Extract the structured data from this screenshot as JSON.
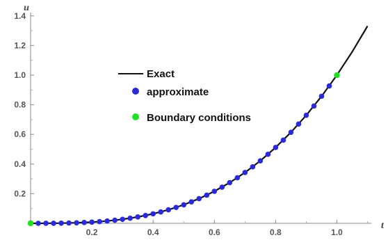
{
  "chart_data": {
    "type": "line",
    "title": "",
    "xlabel": "t",
    "ylabel": "u",
    "xlim": [
      0,
      1.1
    ],
    "ylim": [
      0,
      1.4
    ],
    "x_ticks": [
      "0.2",
      "0.4",
      "0.6",
      "0.8",
      "1.0"
    ],
    "y_ticks": [
      "0.2",
      "0.4",
      "0.6",
      "0.8",
      "1.0",
      "1.2",
      "1.4"
    ],
    "grid": false,
    "legend_position": "center-left",
    "legend": {
      "exact": "Exact",
      "approximate": "approximate",
      "boundary": "Boundary conditions"
    },
    "series": [
      {
        "name": "Exact",
        "style": "line",
        "color": "#111111",
        "x": [
          0,
          0.05,
          0.1,
          0.15,
          0.2,
          0.25,
          0.3,
          0.35,
          0.4,
          0.45,
          0.5,
          0.55,
          0.6,
          0.65,
          0.7,
          0.75,
          0.8,
          0.85,
          0.9,
          0.95,
          1.0,
          1.05,
          1.1
        ],
        "y": [
          0,
          0.0001,
          0.001,
          0.0034,
          0.008,
          0.0156,
          0.027,
          0.0429,
          0.064,
          0.0911,
          0.125,
          0.1664,
          0.216,
          0.2746,
          0.343,
          0.4219,
          0.512,
          0.6141,
          0.729,
          0.8574,
          1.0,
          1.1576,
          1.331
        ]
      },
      {
        "name": "approximate",
        "style": "points",
        "color": "#2a2adb",
        "x": [
          0,
          0.025,
          0.05,
          0.075,
          0.1,
          0.125,
          0.15,
          0.175,
          0.2,
          0.225,
          0.25,
          0.275,
          0.3,
          0.325,
          0.35,
          0.375,
          0.4,
          0.425,
          0.45,
          0.475,
          0.5,
          0.525,
          0.55,
          0.575,
          0.6,
          0.625,
          0.65,
          0.675,
          0.7,
          0.725,
          0.75,
          0.775,
          0.8,
          0.825,
          0.85,
          0.875,
          0.9,
          0.925,
          0.95,
          0.975
        ],
        "y": [
          0,
          0,
          0.0001,
          0.0004,
          0.001,
          0.002,
          0.0034,
          0.0054,
          0.008,
          0.0114,
          0.0156,
          0.0208,
          0.027,
          0.0343,
          0.0429,
          0.0527,
          0.064,
          0.0768,
          0.0911,
          0.1072,
          0.125,
          0.1447,
          0.1664,
          0.1901,
          0.216,
          0.2441,
          0.2746,
          0.3075,
          0.343,
          0.3811,
          0.4219,
          0.4655,
          0.512,
          0.5615,
          0.6141,
          0.6699,
          0.729,
          0.7915,
          0.8574,
          0.9269
        ]
      },
      {
        "name": "Boundary conditions",
        "style": "points",
        "color": "#22e022",
        "x": [
          0,
          1.0
        ],
        "y": [
          0,
          1.0
        ]
      }
    ]
  }
}
